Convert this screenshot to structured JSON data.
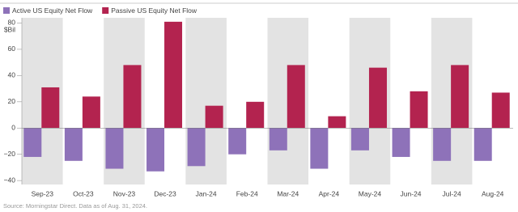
{
  "chart_data": {
    "type": "bar",
    "y_unit": "$Bil",
    "source": "Source: Morningstar Direct. Data as of Aug. 31, 2024.",
    "categories": [
      "Sep-23",
      "Oct-23",
      "Nov-23",
      "Dec-23",
      "Jan-24",
      "Feb-24",
      "Mar-24",
      "Apr-24",
      "May-24",
      "Jun-24",
      "Jul-24",
      "Aug-24"
    ],
    "series": [
      {
        "name": "Active US Equity Net Flow",
        "color": "#8e72b9",
        "values": [
          -22,
          -25,
          -31,
          -33,
          -29,
          -20,
          -17,
          -31,
          -17,
          -22,
          -25,
          -25
        ]
      },
      {
        "name": "Passive US Equity Net Flow",
        "color": "#b3234f",
        "values": [
          31,
          24,
          48,
          81,
          17,
          20,
          48,
          9,
          46,
          28,
          48,
          27
        ]
      }
    ],
    "ylim": [
      -43,
      84
    ],
    "yticks": [
      80,
      60,
      40,
      20,
      0,
      {
        "value": -20,
        "label": "−20"
      },
      {
        "value": -40,
        "label": "−40"
      }
    ],
    "band_color": "#e3e3e3"
  }
}
